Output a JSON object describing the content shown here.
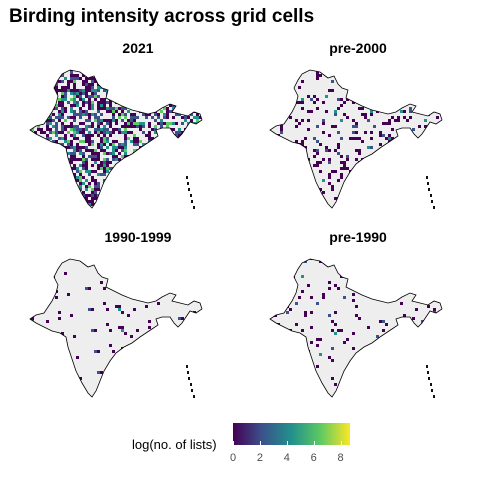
{
  "title": "Birding intensity across grid cells",
  "panels": [
    {
      "label": "2021",
      "density": 0.62
    },
    {
      "label": "pre-2000",
      "density": 0.16
    },
    {
      "label": "1990-1999",
      "density": 0.12
    },
    {
      "label": "pre-1990",
      "density": 0.07
    }
  ],
  "legend": {
    "title": "log(no. of lists)",
    "ticks": [
      "0",
      "2",
      "4",
      "6",
      "8"
    ],
    "min": 0,
    "max": 8.7,
    "colors": [
      "#440154",
      "#3b528b",
      "#21918c",
      "#5ec962",
      "#fde725"
    ]
  },
  "colors": {
    "land": "#eeeeee",
    "outline": "#000000"
  }
}
